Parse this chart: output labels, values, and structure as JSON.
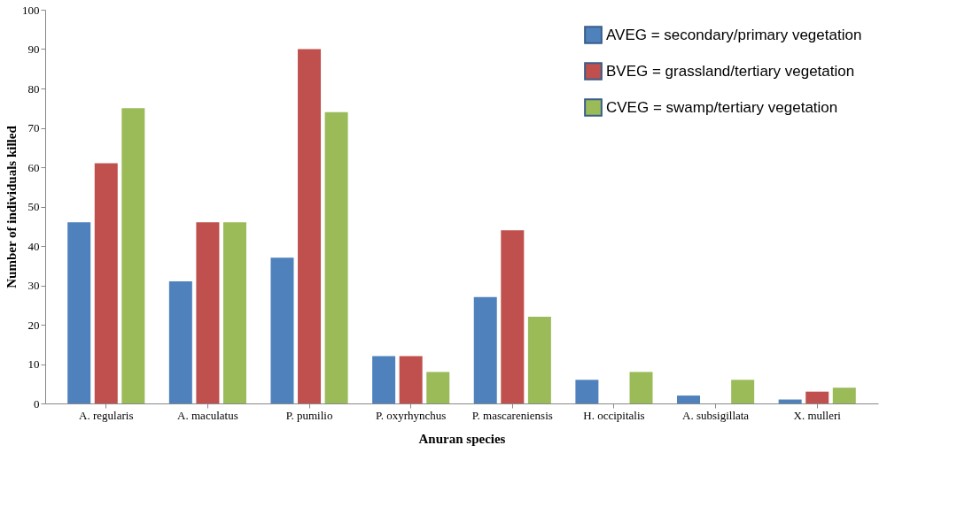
{
  "chart_data": {
    "type": "bar",
    "xlabel": "Anuran species",
    "ylabel": "Number of individuals killed",
    "categories": [
      "A. regularis",
      "A. maculatus",
      "P. pumilio",
      "P. oxyrhynchus",
      "P. mascareniensis",
      "H. occipitalis",
      "A. subsigillata",
      "X. mulleri"
    ],
    "series": [
      {
        "name": "AVEG = secondary/primary vegetation",
        "color": "#4f81bd",
        "values": [
          46,
          31,
          37,
          12,
          27,
          6,
          2,
          1
        ]
      },
      {
        "name": "BVEG = grassland/tertiary vegetation",
        "color": "#c0504d",
        "values": [
          61,
          46,
          90,
          12,
          44,
          0,
          0,
          3
        ]
      },
      {
        "name": "CVEG = swamp/tertiary vegetation",
        "color": "#9bbb59",
        "values": [
          75,
          46,
          74,
          8,
          22,
          8,
          6,
          4
        ]
      }
    ],
    "ylim": [
      0,
      100
    ],
    "yticks": [
      0,
      10,
      20,
      30,
      40,
      50,
      60,
      70,
      80,
      90,
      100
    ],
    "grid": false,
    "legend": "top right"
  }
}
